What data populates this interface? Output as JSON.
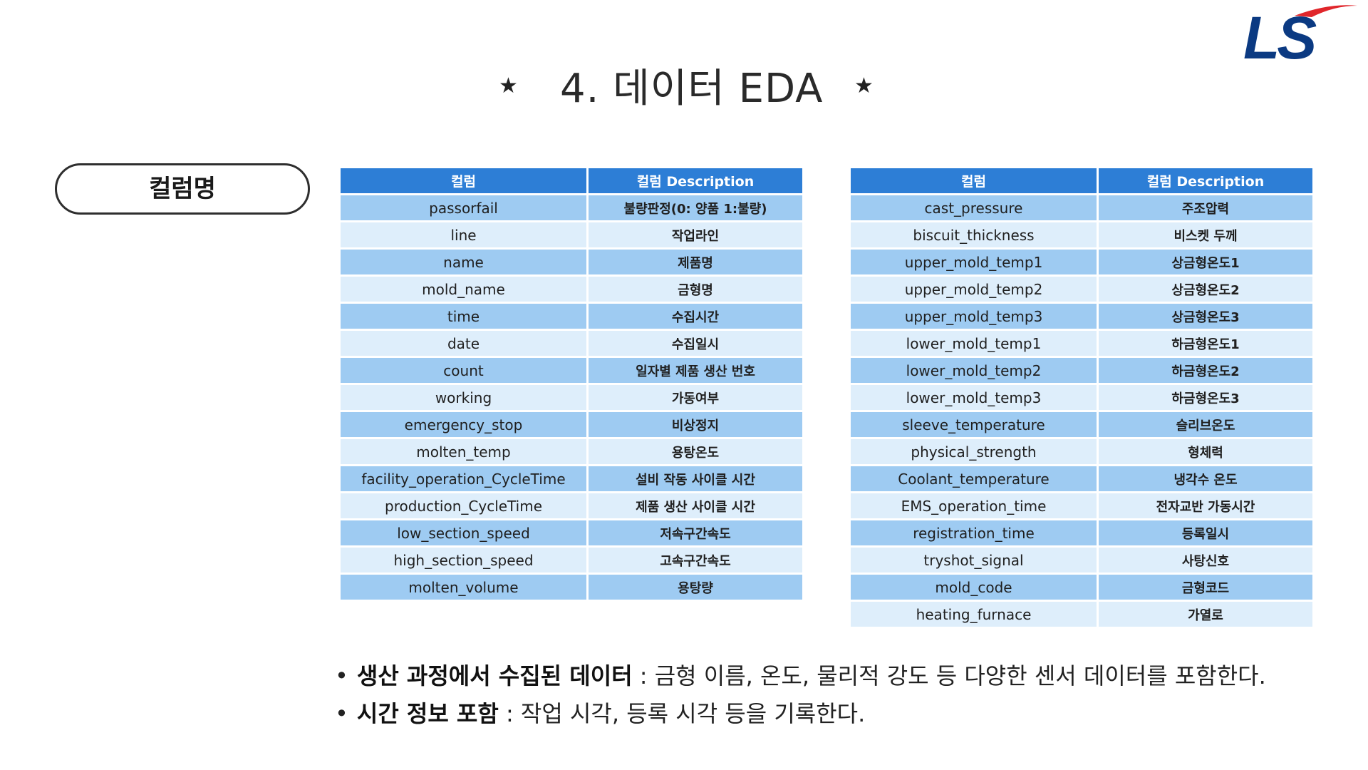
{
  "header": {
    "title": "4. 데이터 EDA",
    "star_left": "★",
    "star_right": "★",
    "logo_text": "LS"
  },
  "section_label": "컬럼명",
  "table_left": {
    "headers": [
      "컬럼",
      "컬럼 Description"
    ],
    "rows": [
      [
        "passorfail",
        "불량판정(0: 양품 1:불량)"
      ],
      [
        "line",
        "작업라인"
      ],
      [
        "name",
        "제품명"
      ],
      [
        "mold_name",
        "금형명"
      ],
      [
        "time",
        "수집시간"
      ],
      [
        "date",
        "수집일시"
      ],
      [
        "count",
        "일자별 제품 생산 번호"
      ],
      [
        "working",
        "가동여부"
      ],
      [
        "emergency_stop",
        "비상정지"
      ],
      [
        "molten_temp",
        "용탕온도"
      ],
      [
        "facility_operation_CycleTime",
        "설비 작동 사이클 시간"
      ],
      [
        "production_CycleTime",
        "제품 생산 사이클 시간"
      ],
      [
        "low_section_speed",
        "저속구간속도"
      ],
      [
        "high_section_speed",
        "고속구간속도"
      ],
      [
        "molten_volume",
        "용탕량"
      ]
    ]
  },
  "table_right": {
    "headers": [
      "컬럼",
      "컬럼 Description"
    ],
    "rows": [
      [
        "cast_pressure",
        "주조압력"
      ],
      [
        "biscuit_thickness",
        "비스켓 두께"
      ],
      [
        "upper_mold_temp1",
        "상금형온도1"
      ],
      [
        "upper_mold_temp2",
        "상금형온도2"
      ],
      [
        "upper_mold_temp3",
        "상금형온도3"
      ],
      [
        "lower_mold_temp1",
        "하금형온도1"
      ],
      [
        "lower_mold_temp2",
        "하금형온도2"
      ],
      [
        "lower_mold_temp3",
        "하금형온도3"
      ],
      [
        "sleeve_temperature",
        "슬리브온도"
      ],
      [
        "physical_strength",
        "형체력"
      ],
      [
        "Coolant_temperature",
        "냉각수 온도"
      ],
      [
        "EMS_operation_time",
        "전자교반 가동시간"
      ],
      [
        "registration_time",
        "등록일시"
      ],
      [
        "tryshot_signal",
        "사탕신호"
      ],
      [
        "mold_code",
        "금형코드"
      ],
      [
        "heating_furnace",
        "가열로"
      ]
    ]
  },
  "bullets": [
    {
      "bold": "생산 과정에서 수집된 데이터",
      "text": " : 금형 이름, 온도, 물리적 강도 등 다양한 센서 데이터를 포함한다."
    },
    {
      "bold": "시간 정보 포함",
      "text": " : 작업 시각, 등록 시각 등을 기록한다."
    }
  ],
  "colors": {
    "header_blue": "#2d7ed6",
    "row_dark": "#9ecbf2",
    "row_light": "#deeefb",
    "logo_blue": "#0b3a82",
    "logo_red": "#e0262b"
  }
}
